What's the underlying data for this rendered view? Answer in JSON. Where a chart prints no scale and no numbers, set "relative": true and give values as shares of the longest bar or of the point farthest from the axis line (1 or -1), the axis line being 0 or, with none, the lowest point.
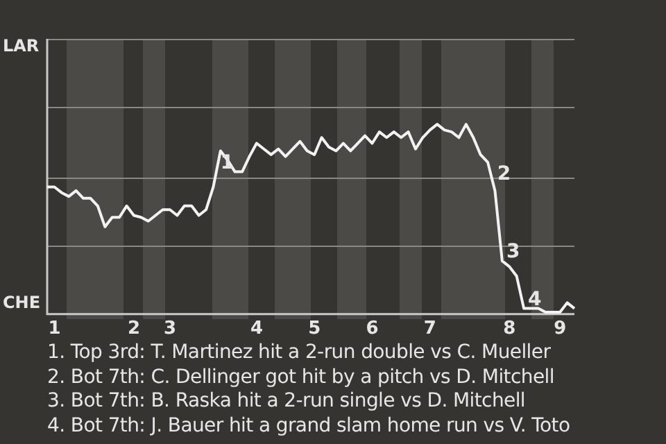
{
  "chart_data": {
    "type": "line",
    "color": "#f2f2f2",
    "relative": true,
    "categories": [
      null,
      "1",
      null,
      null,
      null,
      null,
      null,
      null,
      null,
      null,
      null,
      null,
      "2",
      null,
      null,
      null,
      null,
      "3",
      null,
      null,
      null,
      null,
      null,
      null,
      null,
      null,
      null,
      null,
      null,
      "4",
      null,
      null,
      null,
      null,
      null,
      null,
      null,
      "5",
      null,
      null,
      null,
      null,
      null,
      null,
      null,
      "6",
      null,
      null,
      null,
      null,
      null,
      null,
      null,
      "7",
      null,
      null,
      null,
      null,
      null,
      null,
      null,
      null,
      null,
      null,
      "8",
      null,
      null,
      null,
      null,
      null,
      null,
      "9",
      null,
      null
    ],
    "values": [
      0.67,
      0.67,
      0.64,
      0.62,
      0.65,
      0.61,
      0.61,
      0.57,
      0.46,
      0.51,
      0.51,
      0.57,
      0.52,
      0.51,
      0.49,
      0.52,
      0.55,
      0.55,
      0.52,
      0.57,
      0.57,
      0.52,
      0.55,
      0.67,
      0.86,
      0.81,
      0.75,
      0.75,
      0.83,
      0.9,
      0.87,
      0.84,
      0.87,
      0.83,
      0.87,
      0.91,
      0.86,
      0.84,
      0.93,
      0.88,
      0.86,
      0.9,
      0.86,
      0.9,
      0.94,
      0.9,
      0.96,
      0.93,
      0.96,
      0.93,
      0.96,
      0.87,
      0.93,
      0.97,
      1,
      0.97,
      0.96,
      0.93,
      1,
      0.93,
      0.84,
      0.8,
      0.65,
      0.28,
      0.25,
      0.2,
      0.03,
      0.03,
      0.03,
      0.01,
      0.01,
      0.01,
      0.06,
      0.03
    ],
    "legend": false,
    "marker": "none",
    "line_style": "solid",
    "ref_lines": [
      {
        "axis": "y",
        "value": 0.36,
        "color": "#8a8884"
      },
      {
        "axis": "y",
        "value": 0.72,
        "color": "#8a8884"
      },
      {
        "axis": "y",
        "value": 1.09,
        "color": "#8a8884"
      },
      {
        "axis": "y",
        "value": 1.45,
        "color": "#8a8884"
      }
    ],
    "annotations": [
      "LAR",
      "CHE",
      {
        "text": "1",
        "y": 0.75
      },
      {
        "text": "2",
        "y": 0.69
      },
      {
        "text": "3",
        "y": 0.28
      },
      {
        "text": "4",
        "y": 0.03
      },
      "1. Top 3rd: T. Martinez hit a 2-run double vs C. Mueller",
      "2. Bot 7th: C. Dellinger got hit by a pitch vs D. Mitchell",
      "3. Bot 7th: B. Raska hit a 2-run single vs D. Mitchell",
      "4. Bot 7th: J. Bauer hit a grand slam home run vs V. Toto"
    ]
  }
}
